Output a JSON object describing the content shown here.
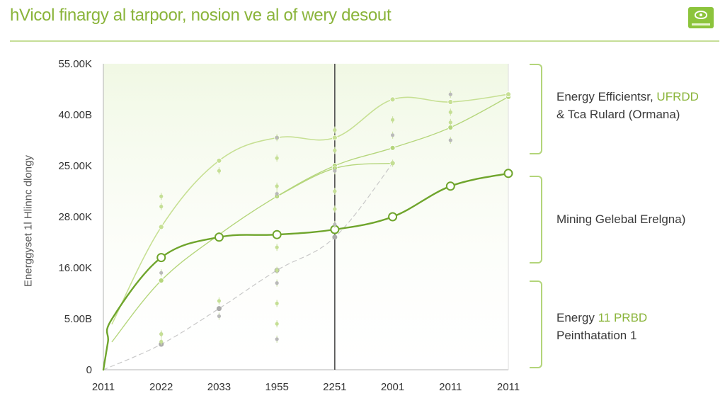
{
  "page": {
    "title": "hVicol finargy al tarpoor, nosion ve al of wery desout"
  },
  "logo": {
    "icon": "nvidia-logo-icon"
  },
  "colors": {
    "accent": "#8ab43a",
    "primary_line": "#6fa52c",
    "light_line": "#c7e094",
    "mid_line": "#b5d67c",
    "dashed_line": "#c8c8c8",
    "axis": "#b3b3b3",
    "divider": "#444444",
    "marker_grey": "#aaaaaa",
    "bracket": "#b3d57a",
    "plot_fill": "#eef7df"
  },
  "annotations": {
    "top": {
      "prefix": "Energy Efficientsr, ",
      "accent": "UFRDD",
      "line2": "& Tca Rulard (Ormana)"
    },
    "middle": {
      "line1": "Mining Gelebal Erelgna)"
    },
    "bottom": {
      "prefix": "Energy ",
      "accent": "11 PRBD",
      "line2": "Peinthatation 1"
    }
  },
  "chart_data": {
    "type": "line",
    "title": "hVicol finargy al tarpoor, nosion ve al of wery desout",
    "ylabel": "Energgyset 1l Hlinnc dlongy",
    "xlabel": "",
    "categories": [
      "2011",
      "2022",
      "2033",
      "1955",
      "2251",
      "2001",
      "2011",
      "2011"
    ],
    "y_tick_labels": [
      "0",
      "5.00B",
      "16.00K",
      "28.00K",
      "25.00K",
      "40.00B",
      "55.00K"
    ],
    "ylim": [
      0,
      6
    ],
    "grid": false,
    "series": [
      {
        "name": "Mining Gelebal Erelgna)",
        "style": "primary",
        "x": [
          0,
          0.08,
          0.15,
          1,
          2,
          3,
          4,
          5,
          6,
          7
        ],
        "values": [
          0,
          0.55,
          1.0,
          2.2,
          2.6,
          2.65,
          2.75,
          3.0,
          3.6,
          3.85
        ]
      },
      {
        "name": "Energy Efficientsr, UFRDD",
        "style": "light",
        "x": [
          0.15,
          1,
          2,
          3,
          4,
          5,
          6,
          7
        ],
        "values": [
          0.9,
          2.8,
          4.1,
          4.55,
          4.55,
          5.3,
          5.25,
          5.4
        ]
      },
      {
        "name": "& Tca Rulard (Ormana)",
        "style": "mid",
        "x": [
          0.15,
          1,
          2,
          3,
          4,
          5,
          6,
          7
        ],
        "values": [
          0.55,
          1.75,
          2.65,
          3.4,
          4.0,
          4.35,
          4.75,
          5.35
        ]
      },
      {
        "name": "Energy 11 PRBD",
        "style": "mid",
        "x": [
          3,
          4,
          5
        ],
        "values": [
          3.4,
          3.95,
          4.05
        ]
      },
      {
        "name": "Peinthatation 1",
        "style": "dashed",
        "x": [
          0,
          1,
          2,
          3,
          4,
          5
        ],
        "values": [
          0,
          0.5,
          1.2,
          1.95,
          2.6,
          4.05
        ]
      }
    ],
    "vertical_marker": {
      "category_index": 4,
      "label": "2251"
    },
    "scatter_markers": [
      {
        "x": 1,
        "values": [
          0.7,
          0.55,
          0.7,
          1.9,
          3.2,
          3.4
        ]
      },
      {
        "x": 2,
        "values": [
          1.05,
          1.35,
          3.9
        ]
      },
      {
        "x": 3,
        "values": [
          0.6,
          0.9,
          1.3,
          1.7,
          1.95,
          2.4,
          3.45,
          3.6,
          4.15,
          4.55
        ]
      },
      {
        "x": 4,
        "values": [
          2.85,
          3.15,
          3.5,
          3.9,
          4.3,
          4.7
        ]
      },
      {
        "x": 5,
        "values": [
          4.6,
          4.9,
          4.05
        ]
      },
      {
        "x": 6,
        "values": [
          4.5,
          4.85,
          5.05,
          5.4
        ]
      }
    ]
  }
}
